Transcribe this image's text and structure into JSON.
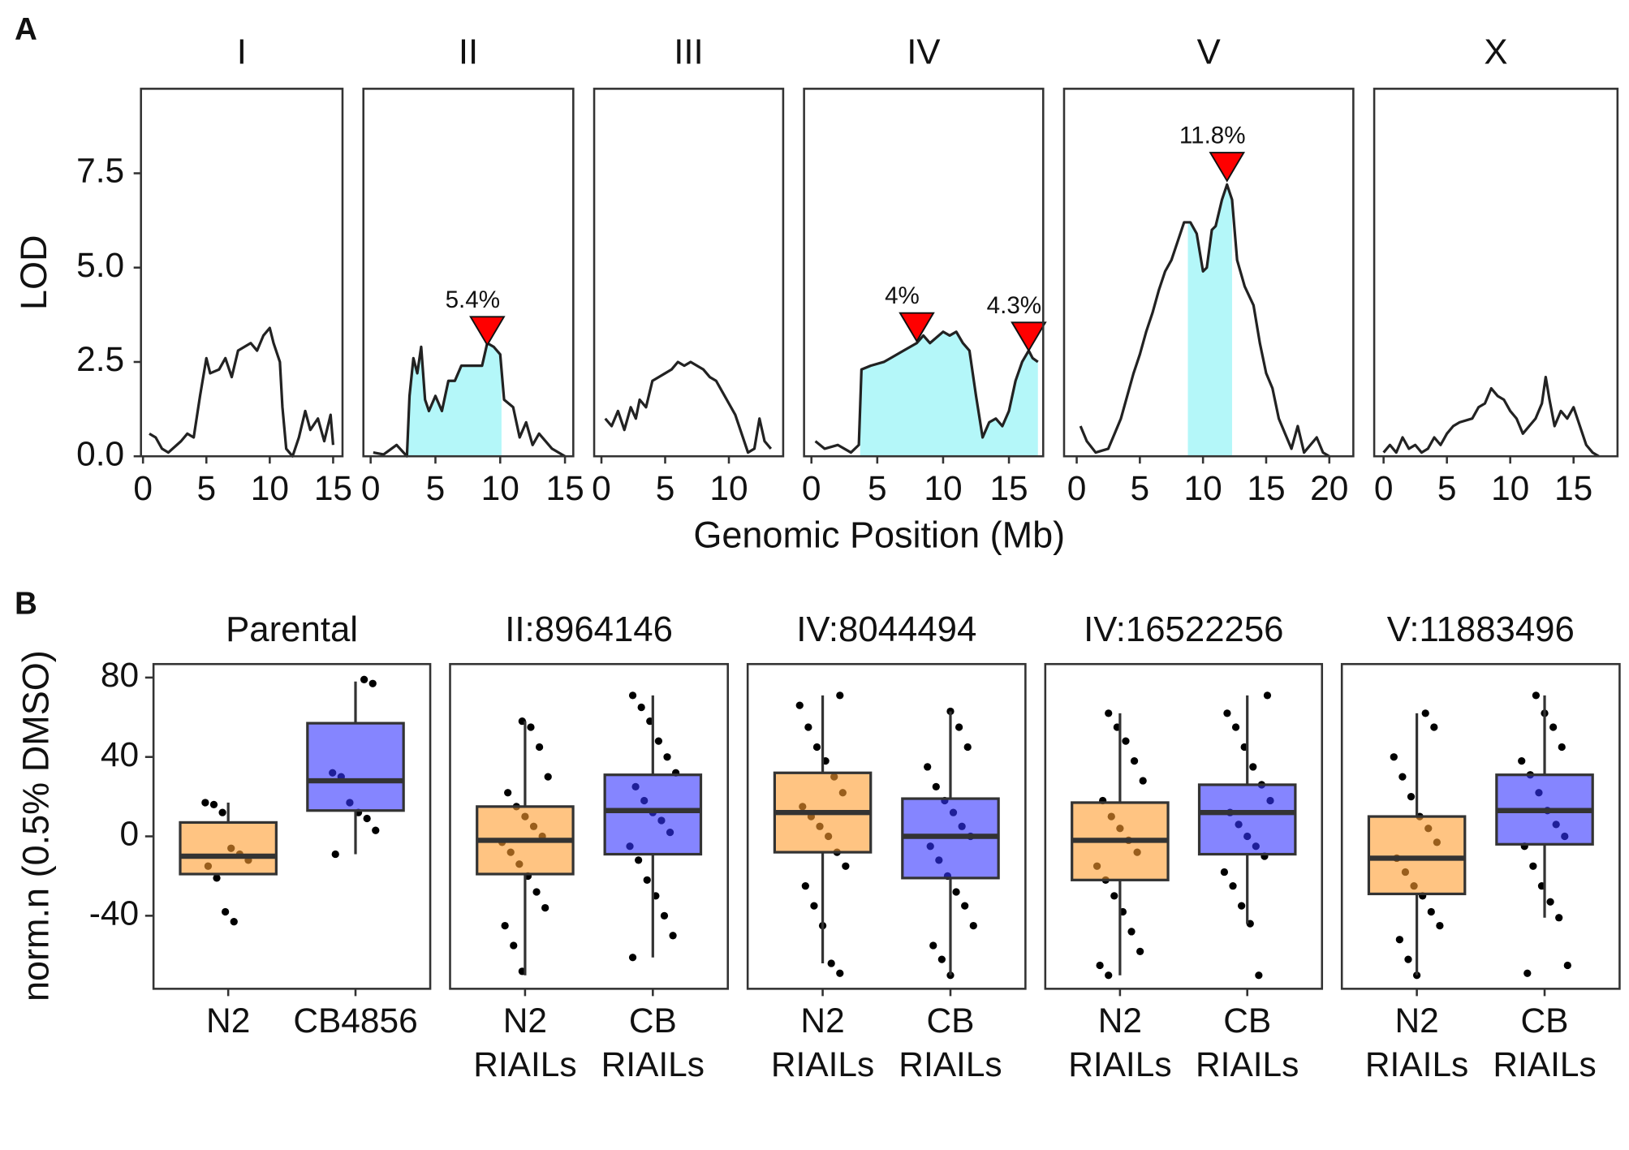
{
  "chart_data": [
    {
      "type": "line",
      "label": "A",
      "y_label": "LOD",
      "x_label": "Genomic Position (Mb)",
      "ylim": [
        0,
        9.74
      ],
      "yticks": [
        {
          "value": 0,
          "label": "0.0"
        },
        2.5,
        {
          "value": 5,
          "label": "5.0"
        },
        7.5
      ],
      "line_color": "#222222",
      "interval_color": "#b4f7f9",
      "peak_color": "#ff0000",
      "facets": [
        {
          "title": "I",
          "xlim": [
            -0.16,
            15.74
          ],
          "xticks": [
            0,
            5,
            10,
            15
          ],
          "x": [
            0.5,
            1,
            1.5,
            2,
            3,
            3.5,
            4,
            4.5,
            5,
            5.3,
            6,
            6.5,
            7,
            7.5,
            8,
            8.5,
            9,
            9.5,
            10,
            10.3,
            10.8,
            11,
            11.3,
            11.8,
            12.3,
            12.8,
            13.2,
            13.8,
            14.3,
            14.8,
            15
          ],
          "values": [
            0.6,
            0.5,
            0.2,
            0.1,
            0.4,
            0.6,
            0.5,
            1.6,
            2.6,
            2.2,
            2.3,
            2.6,
            2.1,
            2.8,
            2.9,
            3.0,
            2.8,
            3.2,
            3.4,
            3.0,
            2.5,
            1.3,
            0.2,
            0.0,
            0.5,
            1.2,
            0.7,
            1.0,
            0.4,
            1.1,
            0.3
          ]
        },
        {
          "title": "II",
          "xlim": [
            -0.56,
            15.64
          ],
          "xticks": [
            0,
            5,
            10,
            15
          ],
          "x": [
            0.2,
            1,
            2,
            2.8,
            3,
            3.3,
            3.6,
            3.9,
            4.2,
            4.5,
            5,
            5.5,
            6,
            6.5,
            7,
            8,
            8.6,
            9,
            9.5,
            10,
            10.3,
            11,
            11.5,
            12,
            12.5,
            13,
            14,
            15
          ],
          "values": [
            0.1,
            0.05,
            0.3,
            0.0,
            1.6,
            2.6,
            2.2,
            2.9,
            1.5,
            1.2,
            1.6,
            1.2,
            2.0,
            2.0,
            2.4,
            2.4,
            2.4,
            3.0,
            2.9,
            2.7,
            1.5,
            1.3,
            0.5,
            0.9,
            0.3,
            0.6,
            0.2,
            0.0
          ],
          "interval": [
            2.8,
            10.1
          ],
          "peaks": [
            {
              "x": 9.0,
              "y": 2.95,
              "label": "5.4%"
            }
          ]
        },
        {
          "title": "III",
          "xlim": [
            -0.57,
            14.26
          ],
          "xticks": [
            0,
            5,
            10
          ],
          "x": [
            0.3,
            0.8,
            1.3,
            1.8,
            2.3,
            2.7,
            3,
            3.5,
            4,
            4.5,
            5,
            5.5,
            6,
            6.5,
            7,
            7.5,
            8,
            8.5,
            9,
            9.5,
            10,
            10.5,
            11,
            11.5,
            12,
            12.4,
            12.8,
            13.3
          ],
          "values": [
            1.0,
            0.8,
            1.2,
            0.7,
            1.3,
            1.0,
            1.5,
            1.3,
            2.0,
            2.1,
            2.2,
            2.3,
            2.5,
            2.4,
            2.5,
            2.4,
            2.3,
            2.1,
            2.0,
            1.7,
            1.4,
            1.1,
            0.6,
            0.1,
            0.2,
            1.0,
            0.4,
            0.2
          ]
        },
        {
          "title": "IV",
          "xlim": [
            -0.56,
            17.6
          ],
          "xticks": [
            0,
            5,
            10,
            15
          ],
          "x": [
            0.3,
            1,
            2,
            3,
            3.6,
            3.8,
            4.5,
            5.5,
            6,
            7,
            7.5,
            8,
            8.5,
            9,
            10,
            10.5,
            11,
            11.5,
            12,
            12.5,
            13,
            13.5,
            14,
            14.5,
            15,
            15.5,
            16,
            16.5,
            16.8,
            17.2
          ],
          "values": [
            0.4,
            0.2,
            0.3,
            0.1,
            0.3,
            2.3,
            2.4,
            2.5,
            2.6,
            2.8,
            2.9,
            3.0,
            3.2,
            3.0,
            3.3,
            3.2,
            3.3,
            3.0,
            2.8,
            1.6,
            0.5,
            0.9,
            1.0,
            0.8,
            1.2,
            2.0,
            2.5,
            2.8,
            2.6,
            2.5
          ],
          "interval": [
            3.7,
            17.2
          ],
          "peaks": [
            {
              "x": 8.0,
              "y": 3.05,
              "label": "4%"
            },
            {
              "x": 16.5,
              "y": 2.8,
              "label": "4.3%"
            }
          ]
        },
        {
          "title": "V",
          "xlim": [
            -1,
            21.9
          ],
          "xticks": [
            0,
            5,
            10,
            15,
            20
          ],
          "x": [
            0.3,
            0.8,
            1.5,
            2.5,
            3,
            3.5,
            4,
            4.5,
            5,
            5.5,
            6,
            6.5,
            7,
            7.5,
            8,
            8.5,
            9,
            9.5,
            10,
            10.3,
            10.7,
            11,
            11.5,
            11.9,
            12.3,
            12.7,
            13.3,
            14,
            14.5,
            15,
            15.5,
            16,
            16.5,
            17,
            17.5,
            18,
            19,
            19.5,
            20
          ],
          "values": [
            0.8,
            0.4,
            0.1,
            0.2,
            0.6,
            1.0,
            1.6,
            2.2,
            2.7,
            3.3,
            3.8,
            4.4,
            4.9,
            5.2,
            5.7,
            6.2,
            6.2,
            5.9,
            4.9,
            5.0,
            6.0,
            6.1,
            6.8,
            7.2,
            6.8,
            5.2,
            4.5,
            4.0,
            3.0,
            2.2,
            1.8,
            1.0,
            0.6,
            0.2,
            0.8,
            0.1,
            0.5,
            0.1,
            0.0
          ],
          "interval": [
            8.8,
            12.3
          ],
          "peaks": [
            {
              "x": 11.9,
              "y": 7.3,
              "label": "11.8%"
            }
          ]
        },
        {
          "title": "X",
          "xlim": [
            -0.74,
            18.47
          ],
          "xticks": [
            0,
            5,
            10,
            15
          ],
          "x": [
            0,
            0.5,
            1,
            1.5,
            2,
            2.5,
            3,
            3.5,
            4,
            4.5,
            5,
            5.5,
            6,
            7,
            7.5,
            8,
            8.5,
            9,
            9.5,
            10,
            10.5,
            11,
            11.5,
            12,
            12.5,
            12.8,
            13.1,
            13.5,
            14,
            14.5,
            15,
            15.5,
            16,
            16.5,
            17
          ],
          "values": [
            0.1,
            0.3,
            0.1,
            0.5,
            0.2,
            0.3,
            0.1,
            0.2,
            0.5,
            0.3,
            0.6,
            0.8,
            0.9,
            1.0,
            1.3,
            1.4,
            1.8,
            1.6,
            1.5,
            1.2,
            1.0,
            0.6,
            0.8,
            1.0,
            1.4,
            2.1,
            1.5,
            0.8,
            1.2,
            1.0,
            1.3,
            0.8,
            0.3,
            0.1,
            0.0
          ]
        }
      ]
    },
    {
      "type": "box",
      "label": "B",
      "y_label": "norm.n (0.5% DMSO)",
      "ylim": [
        -76.8,
        86.8
      ],
      "yticks": [
        -40,
        0,
        40,
        80
      ],
      "facets": [
        {
          "title": "Parental",
          "groups": [
            {
              "label_lines": [
                "N2"
              ],
              "color": "#ff9d2e",
              "q1": -19,
              "median": -10,
              "q3": 7,
              "whisker_low": -19,
              "whisker_high": 17,
              "points": [
                17,
                16,
                12,
                -6,
                -9,
                -12,
                -15,
                -21,
                -38,
                -43
              ]
            },
            {
              "label_lines": [
                "CB4856"
              ],
              "color": "#3333ff",
              "q1": 13,
              "median": 28,
              "q3": 57,
              "whisker_low": -9,
              "whisker_high": 78,
              "points": [
                79,
                77,
                32,
                30,
                17,
                12,
                9,
                3,
                -9
              ]
            }
          ]
        },
        {
          "title": "II:8964146",
          "groups": [
            {
              "label_lines": [
                "N2",
                "RIAILs"
              ],
              "color": "#ff9d2e",
              "q1": -19,
              "median": -2,
              "q3": 15,
              "whisker_low": -70,
              "whisker_high": 58,
              "points": [
                58,
                55,
                45,
                30,
                22,
                15,
                10,
                5,
                0,
                -3,
                -8,
                -14,
                -20,
                -28,
                -36,
                -45,
                -55,
                -68
              ]
            },
            {
              "label_lines": [
                "CB",
                "RIAILs"
              ],
              "color": "#3333ff",
              "q1": -9,
              "median": 13,
              "q3": 31,
              "whisker_low": -61,
              "whisker_high": 71,
              "points": [
                71,
                65,
                58,
                48,
                40,
                32,
                25,
                18,
                12,
                8,
                2,
                -5,
                -12,
                -22,
                -30,
                -40,
                -50,
                -61
              ]
            }
          ]
        },
        {
          "title": "IV:8044494",
          "groups": [
            {
              "label_lines": [
                "N2",
                "RIAILs"
              ],
              "color": "#ff9d2e",
              "q1": -8,
              "median": 12,
              "q3": 32,
              "whisker_low": -64,
              "whisker_high": 71,
              "points": [
                71,
                66,
                55,
                45,
                38,
                30,
                22,
                15,
                10,
                5,
                0,
                -8,
                -15,
                -25,
                -35,
                -45,
                -64,
                -69
              ]
            },
            {
              "label_lines": [
                "CB",
                "RIAILs"
              ],
              "color": "#3333ff",
              "q1": -21,
              "median": 0,
              "q3": 19,
              "whisker_low": -70,
              "whisker_high": 63,
              "points": [
                63,
                55,
                45,
                35,
                25,
                18,
                12,
                5,
                0,
                -5,
                -12,
                -20,
                -28,
                -35,
                -45,
                -55,
                -62,
                -70
              ]
            }
          ]
        },
        {
          "title": "IV:16522256",
          "groups": [
            {
              "label_lines": [
                "N2",
                "RIAILs"
              ],
              "color": "#ff9d2e",
              "q1": -22,
              "median": -2,
              "q3": 17,
              "whisker_low": -70,
              "whisker_high": 62,
              "points": [
                62,
                55,
                48,
                38,
                28,
                18,
                10,
                4,
                -2,
                -8,
                -15,
                -22,
                -30,
                -38,
                -48,
                -58,
                -65,
                -70
              ]
            },
            {
              "label_lines": [
                "CB",
                "RIAILs"
              ],
              "color": "#3333ff",
              "q1": -9,
              "median": 12,
              "q3": 26,
              "whisker_low": -44,
              "whisker_high": 71,
              "points": [
                71,
                62,
                55,
                45,
                35,
                26,
                18,
                12,
                6,
                0,
                -5,
                -10,
                -18,
                -25,
                -35,
                -44,
                -70
              ]
            }
          ]
        },
        {
          "title": "V:11883496",
          "groups": [
            {
              "label_lines": [
                "N2",
                "RIAILs"
              ],
              "color": "#ff9d2e",
              "q1": -29,
              "median": -11,
              "q3": 10,
              "whisker_low": -70,
              "whisker_high": 62,
              "points": [
                62,
                55,
                40,
                30,
                20,
                10,
                4,
                -3,
                -11,
                -18,
                -25,
                -30,
                -38,
                -45,
                -52,
                -62,
                -70
              ]
            },
            {
              "label_lines": [
                "CB",
                "RIAILs"
              ],
              "color": "#3333ff",
              "q1": -4,
              "median": 13,
              "q3": 31,
              "whisker_low": -41,
              "whisker_high": 71,
              "points": [
                71,
                62,
                55,
                45,
                38,
                31,
                22,
                13,
                6,
                0,
                -5,
                -15,
                -25,
                -33,
                -41,
                -65,
                -69
              ]
            }
          ]
        }
      ]
    }
  ]
}
